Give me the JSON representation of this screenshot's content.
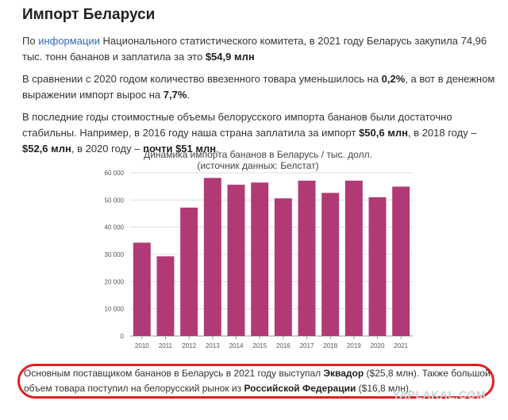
{
  "heading": "Импорт Беларуси",
  "p1": {
    "t1": "По ",
    "link": "информации",
    "t2": " Национального статистического комитета, в 2021 году Беларусь закупила 74,96 тыс. тонн бананов и заплатила за это ",
    "b1": "$54,9 млн"
  },
  "p2": {
    "t1": "В сравнении с 2020 годом количество ввезенного товара уменьшилось на ",
    "b1": "0,2%",
    "t2": ", а вот в денежном выражении импорт вырос на ",
    "b2": "7,7%",
    "t3": "."
  },
  "p3": {
    "t1": "В последние годы стоимостные объемы белорусского импорта бананов были достаточно стабильны. Например, в 2016 году наша страна заплатила за импорт ",
    "b1": "$50,6 млн",
    "t2": ", в 2018 году – ",
    "b2": "$52,6 млн",
    "t3": ", в 2020 году – ",
    "b3": "почти $51 млн",
    "t4": "."
  },
  "chart_data": {
    "type": "bar",
    "title": "Динамика импорта бананов в Беларусь / тыс. долл.",
    "subtitle": "(источник данных: Белстат)",
    "categories": [
      "2010",
      "2011",
      "2012",
      "2013",
      "2014",
      "2015",
      "2016",
      "2017",
      "2018",
      "2019",
      "2020",
      "2021"
    ],
    "values": [
      34300,
      29300,
      47200,
      58100,
      55600,
      56400,
      50600,
      57100,
      52600,
      57100,
      51000,
      54900
    ],
    "ylim": [
      0,
      60000
    ],
    "yticks": [
      0,
      10000,
      20000,
      30000,
      40000,
      50000,
      60000
    ],
    "ytick_labels": [
      "0",
      "10 000",
      "20 000",
      "30 000",
      "40 000",
      "50 000",
      "60 000"
    ],
    "bar_color": "#b23a74",
    "grid": true
  },
  "footer": {
    "t1": "Основным поставщиком бананов в Беларусь в 2021 году выступал ",
    "b1": "Эквадор",
    "t2": " ($25,8 млн). Также большой объем товара поступил на белорусский рынок из ",
    "b2": "Российской Федерации",
    "t3": " ($16,8 млн)."
  },
  "watermark": "YAPLAKAL.COM",
  "colors": {
    "link": "#2d6bb5",
    "highlight_box": "#e12020"
  }
}
